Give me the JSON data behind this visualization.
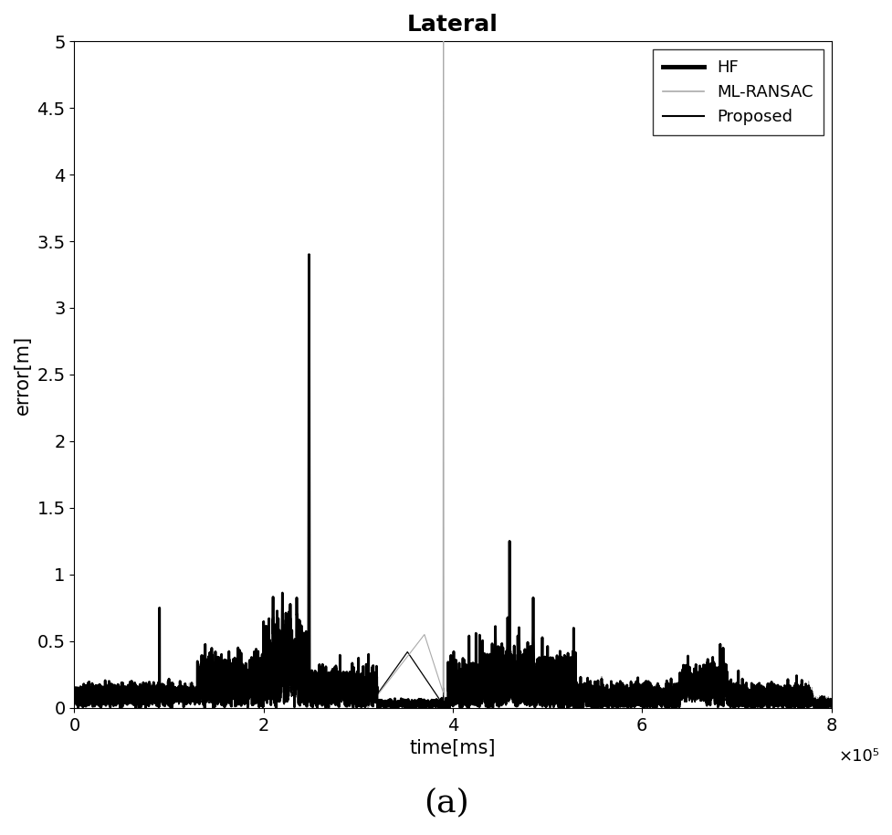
{
  "title": "Lateral",
  "xlabel": "time[ms]",
  "ylabel": "error[m]",
  "xlim": [
    0,
    800000
  ],
  "ylim": [
    0,
    5
  ],
  "xticks": [
    0,
    200000,
    400000,
    600000,
    800000
  ],
  "xticklabels": [
    "0",
    "2",
    "4",
    "6",
    "8"
  ],
  "yticks": [
    0,
    0.5,
    1.0,
    1.5,
    2.0,
    2.5,
    3.0,
    3.5,
    4.0,
    4.5,
    5
  ],
  "yticklabels": [
    "0",
    "0.5",
    "1",
    "1.5",
    "2",
    "2.5",
    "3",
    "3.5",
    "4",
    "4.5",
    "5"
  ],
  "x_scale_label": "×10⁵",
  "legend_labels": [
    "HF",
    "ML-RANSAC",
    "Proposed"
  ],
  "hf_color": "#000000",
  "mlransac_color": "#aaaaaa",
  "proposed_color": "#000000",
  "caption": "(a)",
  "background_color": "#ffffff",
  "hf_linewidth": 2.0,
  "mlransac_linewidth": 0.8,
  "proposed_linewidth": 0.9,
  "legend_hf_lw": 3.5,
  "legend_ml_lw": 1.2,
  "legend_proposed_lw": 1.5
}
